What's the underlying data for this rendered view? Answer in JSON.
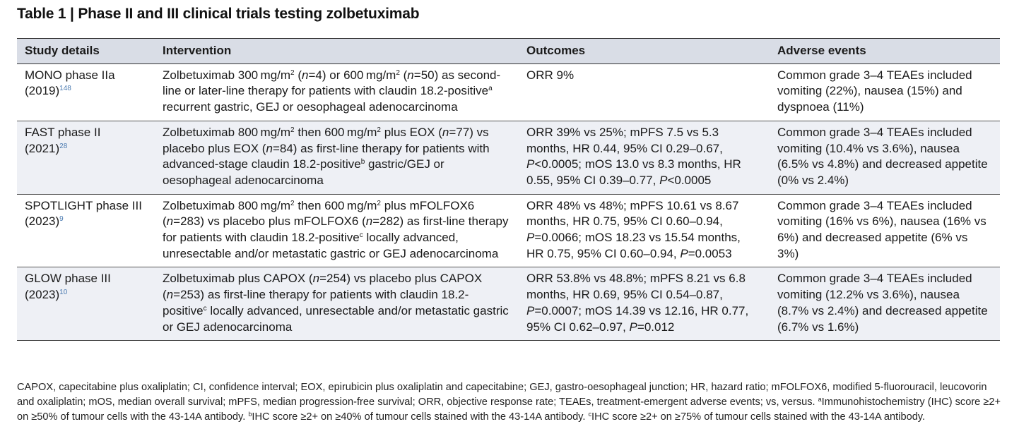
{
  "title": "Table 1 | Phase II and III clinical trials testing zolbetuximab",
  "headers": {
    "study": "Study details",
    "intervention": "Intervention",
    "outcomes": "Outcomes",
    "adverse": "Adverse events"
  },
  "rows": [
    {
      "study_name": "MONO phase IIa",
      "study_year": "(2019)",
      "study_ref": "148",
      "intervention": {
        "t1": "Zolbetuximab 300 mg/m",
        "s1": "2",
        "t2": " (",
        "i1": "n",
        "t3": "=4) or 600 mg/m",
        "s2": "2",
        "t4": " (",
        "i2": "n",
        "t5": "=50) as second-line or later-line therapy for patients with claudin 18.2-positive",
        "s3": "a",
        "t6": " recurrent gastric, GEJ or oesophageal adenocarcinoma"
      },
      "outcomes": {
        "t1": "ORR 9%"
      },
      "adverse": "Common grade 3–4 TEAEs included vomiting (22%), nausea (15%) and dyspnoea (11%)"
    },
    {
      "study_name": "FAST phase II",
      "study_year": "(2021)",
      "study_ref": "28",
      "intervention": {
        "t1": "Zolbetuximab 800 mg/m",
        "s1": "2",
        "t2": " then 600 mg/m",
        "s2": "2",
        "t3": " plus EOX (",
        "i1": "n",
        "t4": "=77) vs placebo plus EOX (",
        "i2": "n",
        "t5": "=84) as first-line therapy for patients with advanced-stage claudin 18.2-positive",
        "s3": "b",
        "t6": " gastric/GEJ or oesophageal adenocarcinoma"
      },
      "outcomes": {
        "t1": "ORR 39% vs 25%; mPFS 7.5 vs 5.3 months, HR 0.44, 95% CI 0.29–0.67, ",
        "i1": "P",
        "t2": "<0.0005; mOS 13.0 vs 8.3 months, HR 0.55, 95% CI 0.39–0.77, ",
        "i2": "P",
        "t3": "<0.0005"
      },
      "adverse": "Common grade 3–4 TEAEs included vomiting (10.4% vs 3.6%), nausea (6.5% vs 4.8%) and decreased appetite (0% vs 2.4%)"
    },
    {
      "study_name": "SPOTLIGHT phase III",
      "study_year": "(2023)",
      "study_ref": "9",
      "intervention": {
        "t1": "Zolbetuximab 800 mg/m",
        "s1": "2",
        "t2": " then 600 mg/m",
        "s2": "2",
        "t3": " plus mFOLFOX6 (",
        "i1": "n",
        "t4": "=283) vs placebo plus mFOLFOX6 (",
        "i2": "n",
        "t5": "=282) as first-line therapy for patients with claudin 18.2-positive",
        "s3": "c",
        "t6": " locally advanced, unresectable and/or metastatic gastric or GEJ adenocarcinoma"
      },
      "outcomes": {
        "t1": "ORR 48% vs 48%; mPFS 10.61 vs 8.67 months, HR 0.75, 95% CI 0.60–0.94, ",
        "i1": "P",
        "t2": "=0.0066; mOS 18.23 vs 15.54 months, HR 0.75, 95% CI 0.60–0.94, ",
        "i2": "P",
        "t3": "=0.0053"
      },
      "adverse": "Common grade 3–4 TEAEs included vomiting (16% vs 6%), nausea (16% vs 6%) and decreased appetite (6% vs 3%)"
    },
    {
      "study_name": "GLOW phase III",
      "study_year": "(2023)",
      "study_ref": "10",
      "intervention": {
        "t1": "Zolbetuximab plus CAPOX (",
        "i1": "n",
        "t2": "=254) vs placebo plus CAPOX (",
        "i2": "n",
        "t3": "=253) as first-line therapy for patients with claudin 18.2-positive",
        "s1": "c",
        "t4": " locally advanced, unresectable and/or metastatic gastric or GEJ adenocarcinoma"
      },
      "outcomes": {
        "t1": "ORR 53.8% vs 48.8%; mPFS 8.21 vs 6.8 months, HR 0.69, 95% CI 0.54–0.87, ",
        "i1": "P",
        "t2": "=0.0007; mOS 14.39 vs 12.16, HR 0.77, 95% CI 0.62–0.97, ",
        "i2": "P",
        "t3": "=0.012"
      },
      "adverse": "Common grade 3–4 TEAEs included vomiting (12.2% vs 3.6%), nausea (8.7% vs 2.4%) and decreased appetite (6.7% vs 1.6%)"
    }
  ],
  "footnote": {
    "abbrev": "CAPOX, capecitabine plus oxaliplatin; CI, confidence interval; EOX, epirubicin plus oxaliplatin and capecitabine; GEJ, gastro-oesophageal junction; HR, hazard ratio; mFOLFOX6, modified 5-fluorouracil, leucovorin and oxaliplatin; mOS, median overall survival; mPFS, median progression-free survival; ORR, objective response rate; TEAEs, treatment-emergent adverse events; vs, versus. ",
    "a_mark": "a",
    "a_text": "Immunohistochemistry (IHC) score ≥2+ on ≥50% of tumour cells with the 43-14A antibody. ",
    "b_mark": "b",
    "b_text": "IHC score ≥2+ on ≥40% of tumour cells stained with the 43-14A antibody. ",
    "c_mark": "c",
    "c_text": "IHC score ≥2+ on ≥75% of tumour cells stained with the 43-14A antibody."
  },
  "colors": {
    "header_bg": "#d9dde6",
    "alt_row_bg": "#eef0f5",
    "ref_color": "#4a7ab0"
  }
}
